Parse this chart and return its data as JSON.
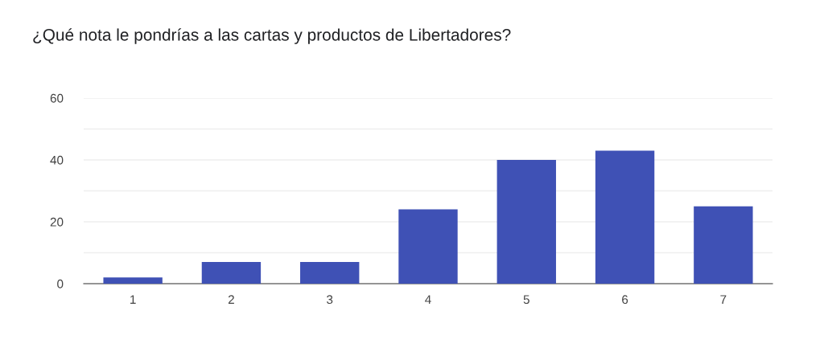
{
  "chart_data": {
    "type": "bar",
    "title": "¿Qué nota le pondrías a las cartas y productos de Libertadores?",
    "categories": [
      "1",
      "2",
      "3",
      "4",
      "5",
      "6",
      "7"
    ],
    "values": [
      2,
      7,
      7,
      24,
      40,
      43,
      25
    ],
    "color": "#3f51b5",
    "ylim": [
      0,
      60
    ],
    "yticks": [
      0,
      {
        "value": 10,
        "label": null
      },
      20,
      {
        "value": 30,
        "label": null
      },
      40,
      {
        "value": 50,
        "label": null
      },
      60
    ],
    "grid": "y",
    "legend": false
  }
}
